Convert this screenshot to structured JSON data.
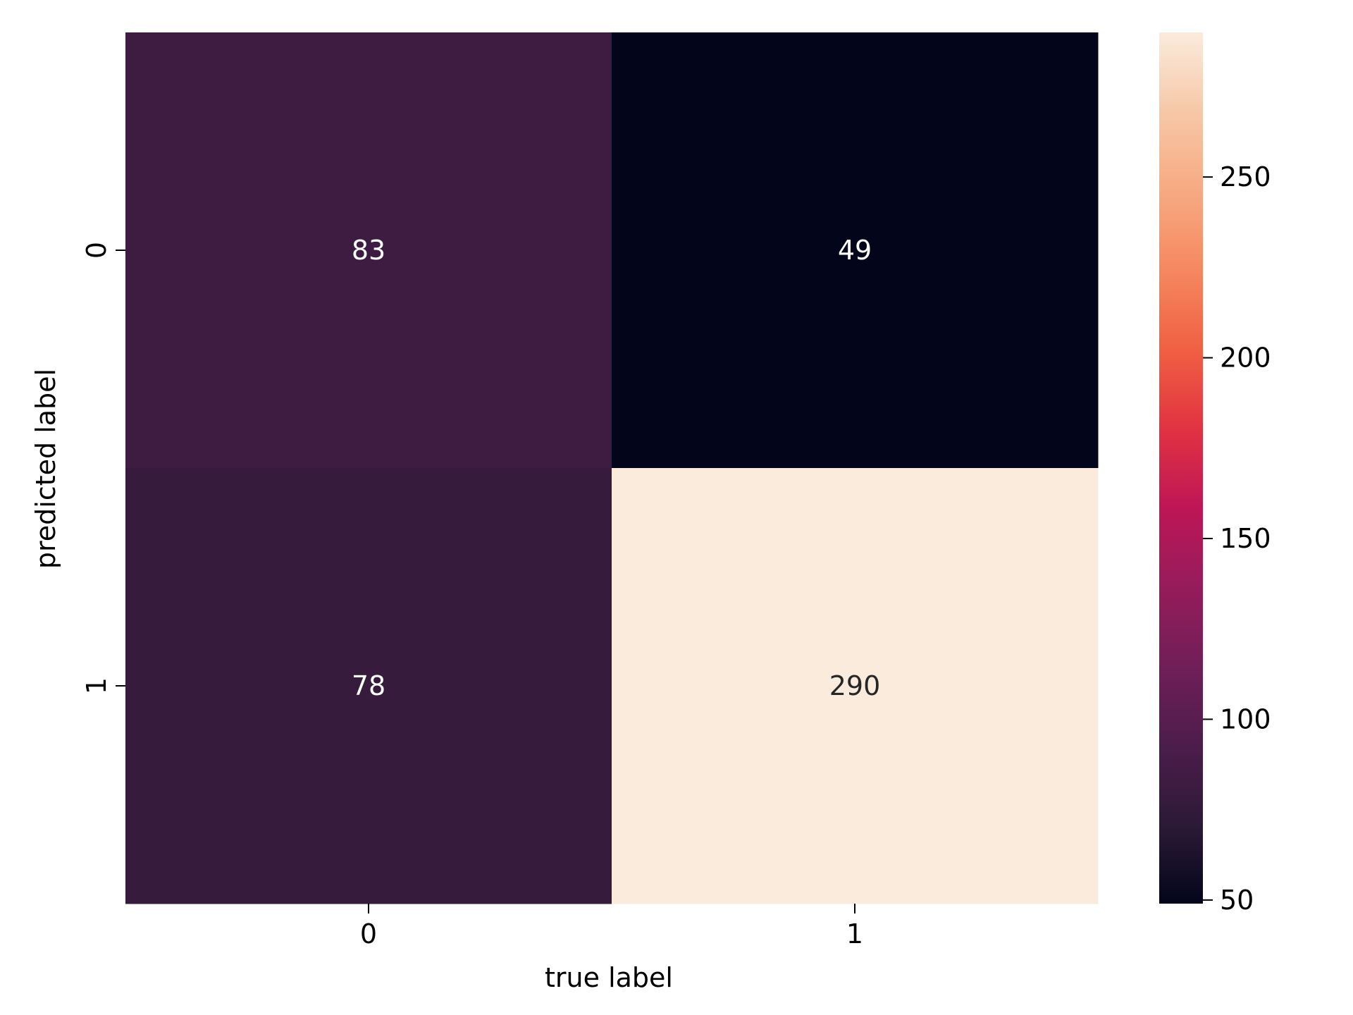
{
  "chart_data": {
    "type": "heatmap",
    "title": "",
    "xlabel": "true label",
    "ylabel": "predicted label",
    "x_categories": [
      "0",
      "1"
    ],
    "y_categories": [
      "0",
      "1"
    ],
    "values": [
      [
        83,
        49
      ],
      [
        78,
        290
      ]
    ],
    "value_labels": [
      [
        "83",
        "49"
      ],
      [
        "78",
        "290"
      ]
    ],
    "color_scale": {
      "name": "rocket",
      "vmin": 49,
      "vmax": 290,
      "ticks": [
        "50",
        "100",
        "150",
        "200",
        "250"
      ],
      "tick_values": [
        50,
        100,
        150,
        200,
        250
      ],
      "stops": [
        "#03051A",
        "#2C1A37",
        "#4C1D4B",
        "#701F57",
        "#961C5B",
        "#BE1656",
        "#E13342",
        "#F06043",
        "#F58860",
        "#F6AA82",
        "#F6C8A8",
        "#FAEBDD"
      ]
    },
    "grid": false,
    "colorbar": "right"
  }
}
